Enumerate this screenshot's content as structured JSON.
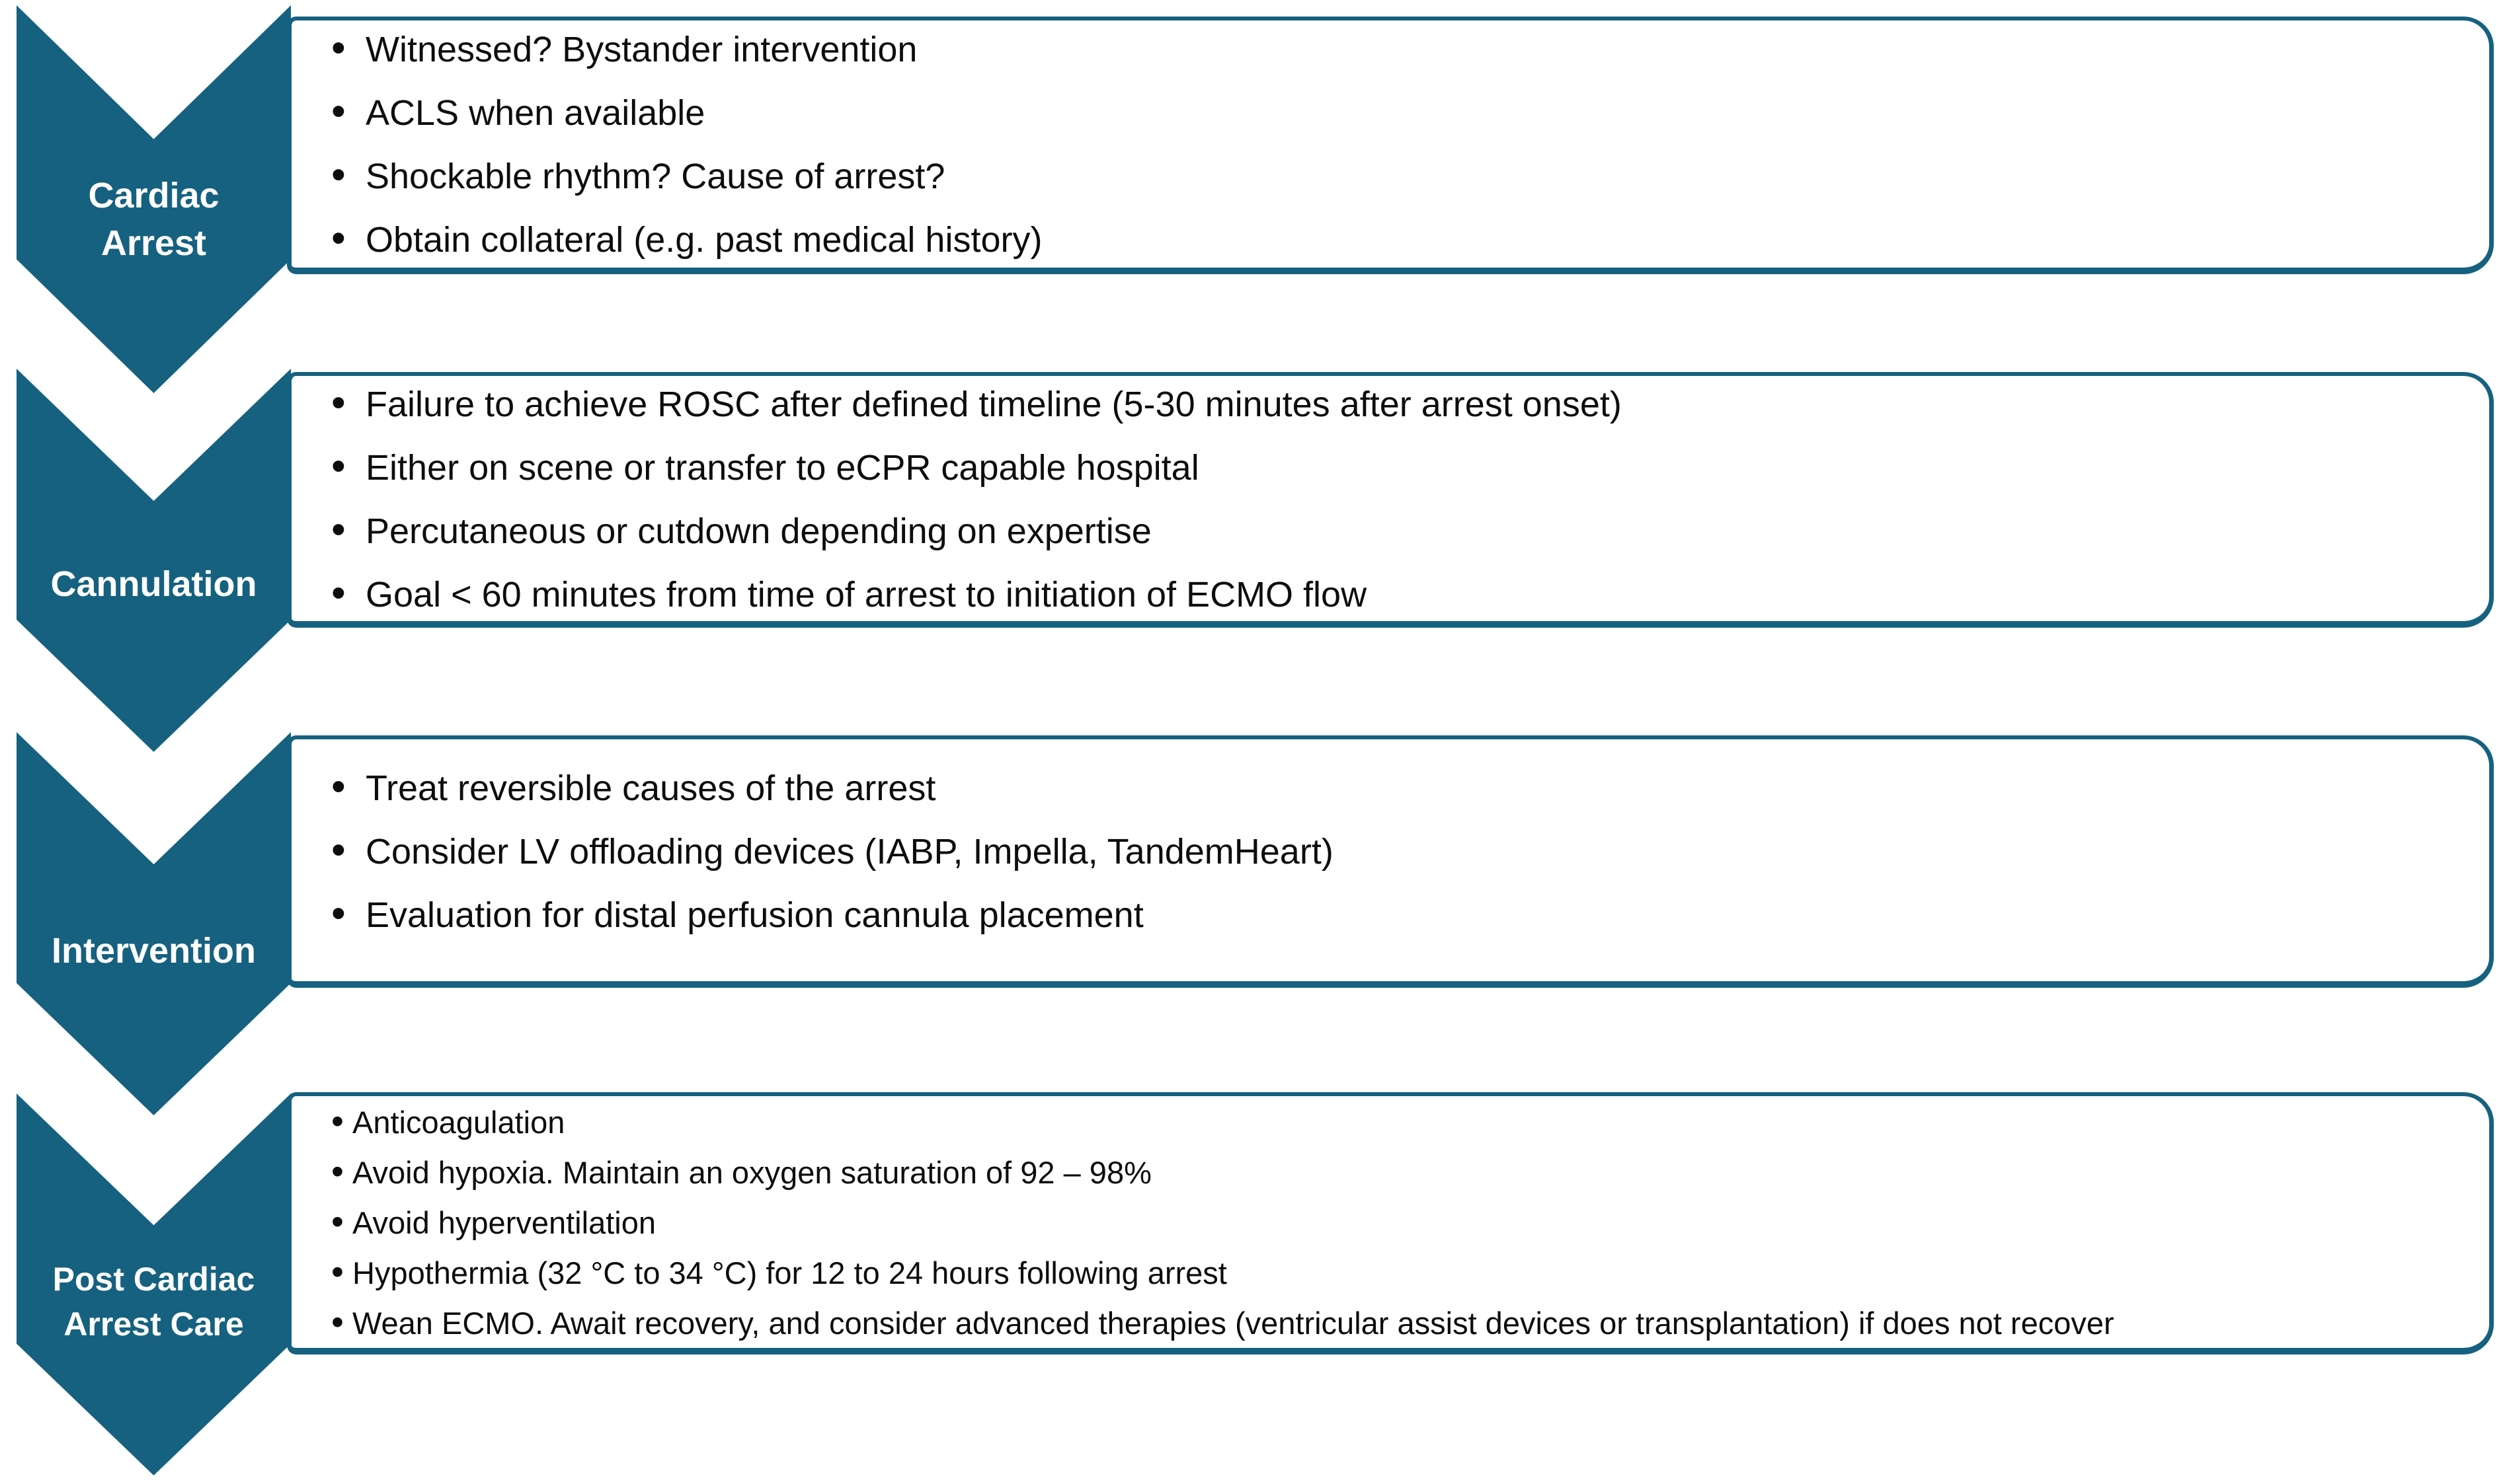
{
  "diagram": {
    "accent_color": "#16617F",
    "text_color": "#0d0d0d",
    "stages": [
      {
        "id": "cardiac-arrest",
        "label": "Cardiac Arrest",
        "label_lines": [
          "Cardiac",
          "Arrest"
        ],
        "bullets": [
          "Witnessed? Bystander intervention",
          "ACLS when available",
          "Shockable rhythm? Cause of arrest?",
          "Obtain collateral (e.g. past medical history)"
        ]
      },
      {
        "id": "cannulation",
        "label": "Cannulation",
        "label_lines": [
          "Cannulation"
        ],
        "bullets": [
          "Failure to achieve ROSC after defined timeline (5-30 minutes after arrest onset)",
          "Either on scene or transfer to eCPR capable hospital",
          "Percutaneous or cutdown depending on expertise",
          "Goal < 60 minutes from time of arrest to initiation of ECMO flow"
        ]
      },
      {
        "id": "intervention",
        "label": "Intervention",
        "label_lines": [
          "Intervention"
        ],
        "bullets": [
          "Treat reversible causes of the arrest",
          "Consider LV offloading devices (IABP, Impella, TandemHeart)",
          "Evaluation for distal perfusion cannula placement"
        ]
      },
      {
        "id": "post-cardiac-arrest-care",
        "label": "Post Cardiac Arrest Care",
        "label_lines": [
          "Post Cardiac",
          "Arrest Care"
        ],
        "bullets": [
          "Anticoagulation",
          "Avoid hypoxia. Maintain an oxygen saturation of 92 – 98%",
          "Avoid hyperventilation",
          "Hypothermia (32 °C to 34 °C) for 12 to 24 hours following arrest",
          "Wean ECMO. Await recovery, and consider advanced therapies (ventricular assist devices or transplantation) if does not recover"
        ]
      }
    ]
  }
}
